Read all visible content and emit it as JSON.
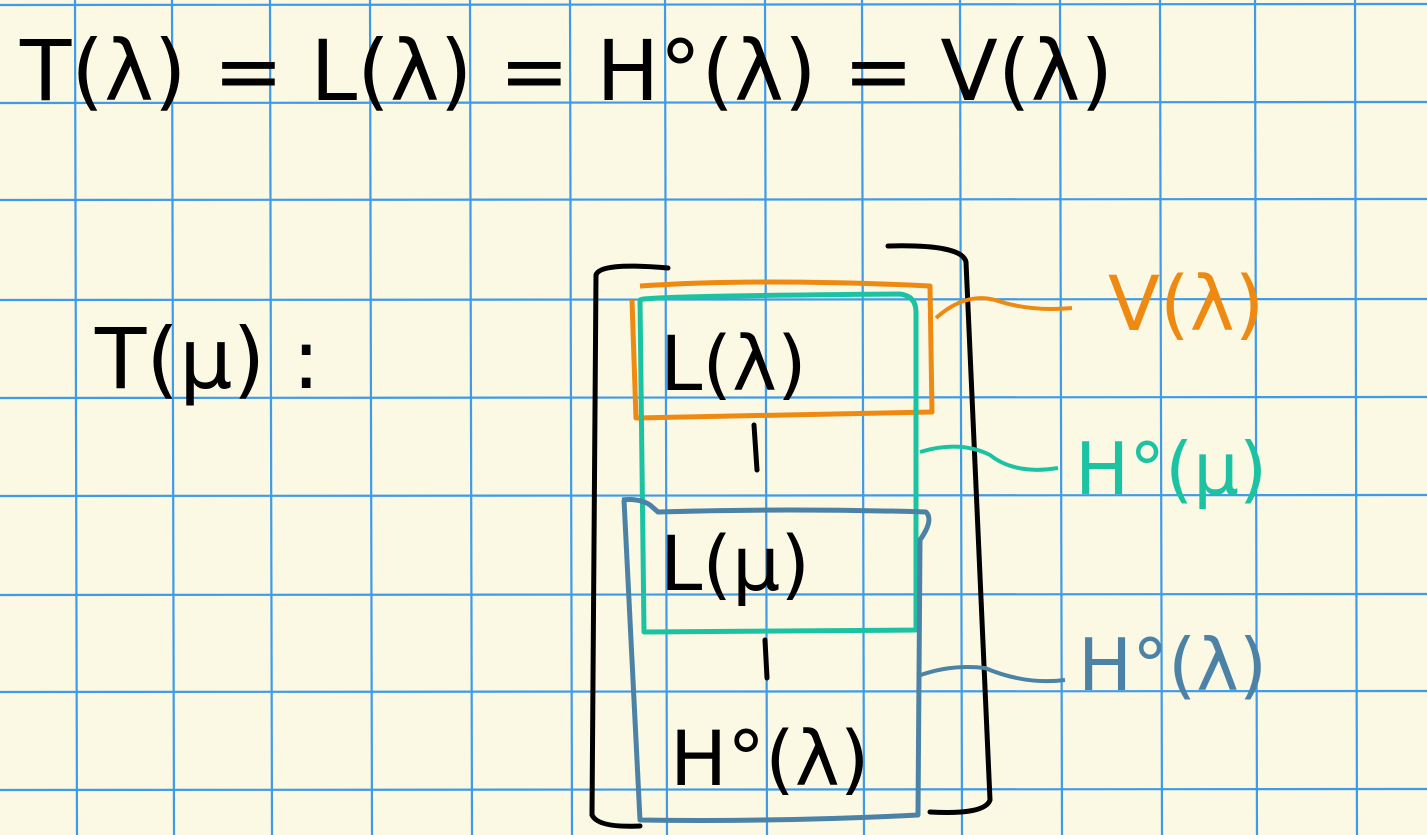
{
  "equation": {
    "text": "T(λ) = L(λ) = H°(λ) = V(λ)"
  },
  "module": {
    "label": "T(μ) :"
  },
  "composition_factors": [
    {
      "label": "L(λ)"
    },
    {
      "label": "L(μ)"
    },
    {
      "label": "H°(λ)"
    }
  ],
  "submodules": [
    {
      "label": "V(λ)",
      "color": "#ee8a12"
    },
    {
      "label": "H°(μ)",
      "color": "#1cc3a3"
    },
    {
      "label": "H°(λ)",
      "color": "#4b82a6"
    }
  ],
  "colors": {
    "background": "#fbf8e3",
    "grid": "#3d9be9",
    "ink": "#000000"
  }
}
